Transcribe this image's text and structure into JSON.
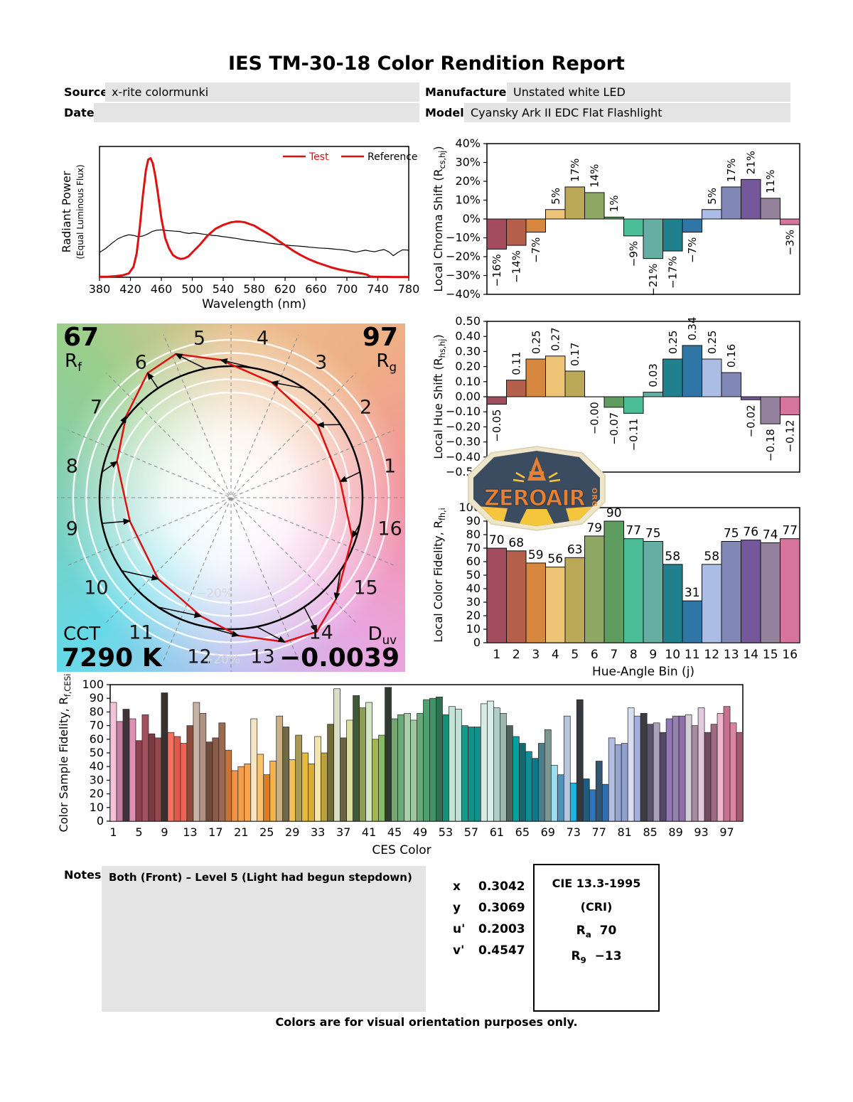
{
  "title": "IES TM-30-18 Color Rendition Report",
  "header": {
    "source_label": "Source:",
    "source_value": "x-rite colormunki",
    "date_label": "Date:",
    "date_value": "",
    "manufacturer_label": "Manufacturer:",
    "manufacturer_value": "Unstated white LED",
    "model_label": "Model:",
    "model_value": "Cyansky Ark II EDC Flat Flashlight"
  },
  "cvg": {
    "rf_value": "67",
    "rf_base": "R",
    "rf_sub": "f",
    "rg_value": "97",
    "rg_base": "R",
    "rg_sub": "g",
    "cct_label": "CCT",
    "cct_value": "7290 K",
    "duv_base": "D",
    "duv_sub": "uv",
    "duv_value": "−0.0039",
    "minus20": "−20%",
    "plus20": "+20%",
    "bin_labels": [
      "1",
      "2",
      "3",
      "4",
      "5",
      "6",
      "7",
      "8",
      "9",
      "10",
      "11",
      "12",
      "13",
      "14",
      "15",
      "16"
    ]
  },
  "logo": {
    "brand": "ZEROAIR",
    "org": "ORG"
  },
  "notes": {
    "label": "Notes:",
    "text": "Both (Front) – Level 5 (Light had begun stepdown)"
  },
  "chromaticity": {
    "rows": [
      {
        "label": "x",
        "value": "0.3042"
      },
      {
        "label": "y",
        "value": "0.3069"
      },
      {
        "label": "u'",
        "value": "0.2003"
      },
      {
        "label": "v'",
        "value": "0.4547"
      }
    ]
  },
  "cri_box": {
    "title": "CIE 13.3-1995",
    "subtitle": "(CRI)",
    "ra_base": "R",
    "ra_sub": "a",
    "ra_value": "70",
    "r9_base": "R",
    "r9_sub": "9",
    "r9_value": "−13"
  },
  "footer": "Colors are for visual orientation purposes only.",
  "bin_colors": [
    "#A24C5E",
    "#B4604A",
    "#D8883E",
    "#EDC475",
    "#BCA958",
    "#90A865",
    "#5F9C60",
    "#4CBE97",
    "#66AEA4",
    "#20808D",
    "#2F76A6",
    "#ABBCE5",
    "#8288B6",
    "#75579B",
    "#94819C",
    "#D5749C"
  ],
  "chart_data": [
    {
      "id": "spd",
      "type": "line",
      "xlabel": "Wavelength (nm)",
      "ylabel": "Radiant Power",
      "ylabel2": "(Equal Luminous Flux)",
      "xlim": [
        380,
        780
      ],
      "ylim": [
        0,
        1
      ],
      "x_ticks": [
        380,
        420,
        460,
        500,
        540,
        580,
        620,
        660,
        700,
        740,
        780
      ],
      "legend": [
        {
          "label": "Test",
          "color": "#dd1111"
        },
        {
          "label": "Reference",
          "color": "#000000"
        }
      ],
      "series": [
        {
          "name": "Reference",
          "color": "#000000",
          "width": 1.2,
          "x": [
            380,
            388,
            396,
            404,
            412,
            418,
            424,
            430,
            436,
            442,
            448,
            454,
            460,
            466,
            472,
            478,
            484,
            490,
            496,
            502,
            508,
            514,
            520,
            526,
            532,
            538,
            544,
            550,
            556,
            562,
            568,
            574,
            580,
            586,
            592,
            598,
            604,
            610,
            616,
            622,
            628,
            634,
            640,
            646,
            652,
            658,
            664,
            670,
            676,
            682,
            688,
            694,
            700,
            706,
            712,
            718,
            724,
            730,
            736,
            742,
            748,
            754,
            760,
            766,
            772,
            778,
            780
          ],
          "y": [
            0.19,
            0.22,
            0.26,
            0.295,
            0.315,
            0.325,
            0.32,
            0.31,
            0.315,
            0.33,
            0.35,
            0.36,
            0.362,
            0.358,
            0.355,
            0.352,
            0.35,
            0.34,
            0.335,
            0.34,
            0.335,
            0.33,
            0.325,
            0.32,
            0.318,
            0.312,
            0.308,
            0.302,
            0.298,
            0.292,
            0.285,
            0.28,
            0.277,
            0.272,
            0.268,
            0.262,
            0.258,
            0.253,
            0.25,
            0.246,
            0.242,
            0.24,
            0.237,
            0.234,
            0.23,
            0.227,
            0.224,
            0.222,
            0.22,
            0.217,
            0.213,
            0.21,
            0.206,
            0.198,
            0.192,
            0.2,
            0.207,
            0.2,
            0.195,
            0.205,
            0.212,
            0.195,
            0.165,
            0.19,
            0.21,
            0.208,
            0.205
          ]
        },
        {
          "name": "Test",
          "color": "#dd1111",
          "width": 3,
          "x": [
            380,
            390,
            400,
            410,
            418,
            424,
            428,
            432,
            436,
            440,
            443,
            446,
            449,
            452,
            456,
            460,
            465,
            470,
            475,
            480,
            485,
            490,
            495,
            500,
            510,
            520,
            530,
            540,
            550,
            556,
            562,
            568,
            575,
            580,
            590,
            600,
            610,
            620,
            630,
            640,
            650,
            660,
            670,
            680,
            690,
            700,
            710,
            720,
            726,
            730,
            735,
            740,
            750,
            760,
            770,
            780
          ],
          "y": [
            0.004,
            0.004,
            0.008,
            0.015,
            0.03,
            0.08,
            0.18,
            0.38,
            0.62,
            0.82,
            0.9,
            0.91,
            0.87,
            0.78,
            0.62,
            0.45,
            0.3,
            0.22,
            0.17,
            0.15,
            0.14,
            0.145,
            0.16,
            0.19,
            0.25,
            0.32,
            0.37,
            0.4,
            0.42,
            0.425,
            0.425,
            0.42,
            0.405,
            0.395,
            0.36,
            0.325,
            0.285,
            0.245,
            0.205,
            0.17,
            0.14,
            0.115,
            0.095,
            0.075,
            0.06,
            0.048,
            0.038,
            0.028,
            0.02,
            0.006,
            0.004,
            0.003,
            0.003,
            0.002,
            0.002,
            0.002
          ]
        }
      ]
    },
    {
      "id": "chroma",
      "type": "bar",
      "ylabel_parts": [
        [
          "Local Chroma Shift (R",
          0
        ],
        [
          "cs,hj",
          1
        ],
        [
          ")",
          0
        ]
      ],
      "ylim": [
        -40,
        40
      ],
      "ytick_step": 10,
      "ytick_suffix": "%",
      "categories": [
        1,
        2,
        3,
        4,
        5,
        6,
        7,
        8,
        9,
        10,
        11,
        12,
        13,
        14,
        15,
        16
      ],
      "values": [
        -16,
        -14,
        -7,
        5,
        17,
        14,
        1,
        -9,
        -21,
        -17,
        -7,
        5,
        17,
        21,
        11,
        -3
      ],
      "labels": [
        "−16%",
        "−14%",
        "−7%",
        "5%",
        "17%",
        "14%",
        "1%",
        "−9%",
        "−21%",
        "−17%",
        "−7%",
        "5%",
        "17%",
        "21%",
        "11%",
        "−3%"
      ]
    },
    {
      "id": "hue",
      "type": "bar",
      "ylabel_parts": [
        [
          "Local Hue Shift (R",
          0
        ],
        [
          "hs,hj",
          1
        ],
        [
          ")",
          0
        ]
      ],
      "ylim": [
        -0.5,
        0.5
      ],
      "ytick_step": 0.1,
      "categories": [
        1,
        2,
        3,
        4,
        5,
        6,
        7,
        8,
        9,
        10,
        11,
        12,
        13,
        14,
        15,
        16
      ],
      "values": [
        -0.05,
        0.11,
        0.25,
        0.27,
        0.17,
        -0.001,
        -0.07,
        -0.11,
        0.03,
        0.25,
        0.34,
        0.25,
        0.16,
        -0.02,
        -0.18,
        -0.12
      ],
      "labels": [
        "−0.05",
        "0.11",
        "0.25",
        "0.27",
        "0.17",
        "−0.00",
        "−0.07",
        "−0.11",
        "0.03",
        "0.25",
        "0.34",
        "0.25",
        "0.16",
        "−0.02",
        "−0.18",
        "−0.12"
      ]
    },
    {
      "id": "localrf",
      "type": "bar",
      "ylabel_parts": [
        [
          "Local Color Fidelity, R",
          0
        ],
        [
          "fh,i",
          1
        ]
      ],
      "xlabel": "Hue-Angle Bin (j)",
      "ylim": [
        0,
        100
      ],
      "ytick_step": 10,
      "categories": [
        "1",
        "2",
        "3",
        "4",
        "5",
        "6",
        "7",
        "8",
        "9",
        "10",
        "11",
        "12",
        "13",
        "14",
        "15",
        "16"
      ],
      "values": [
        70,
        68,
        59,
        56,
        63,
        79,
        90,
        77,
        75,
        58,
        31,
        58,
        75,
        76,
        74,
        77
      ]
    },
    {
      "id": "ces",
      "type": "bar",
      "ylabel_parts": [
        [
          "Color Sample Fidelity, R",
          0
        ],
        [
          "f,CESi",
          1
        ]
      ],
      "xlabel": "CES Color",
      "ylim": [
        0,
        100
      ],
      "ytick_step": 10,
      "xtick_every": 4,
      "values": [
        87,
        73,
        82,
        75,
        59,
        78,
        64,
        61,
        94,
        65,
        62,
        57,
        70,
        87,
        79,
        58,
        61,
        72,
        52,
        37,
        40,
        42,
        75,
        49,
        34,
        44,
        77,
        69,
        45,
        63,
        50,
        42,
        62,
        50,
        71,
        97,
        61,
        74,
        92,
        83,
        87,
        60,
        63,
        98,
        75,
        78,
        79,
        74,
        79,
        89,
        90,
        91,
        78,
        84,
        82,
        70,
        69,
        69,
        86,
        88,
        83,
        79,
        70,
        62,
        57,
        51,
        46,
        57,
        67,
        41,
        34,
        77,
        28,
        89,
        31,
        23,
        44,
        27,
        61,
        56,
        57,
        83,
        77,
        79,
        71,
        72,
        65,
        75,
        77,
        77,
        78,
        70,
        83,
        65,
        71,
        79,
        84,
        72,
        65
      ],
      "colors": [
        "#F4C3D7",
        "#C47F9F",
        "#403339",
        "#DE8FB4",
        "#8E3F4E",
        "#A4505F",
        "#7C3A42",
        "#95494A",
        "#373132",
        "#F4705F",
        "#DE5A4D",
        "#E96657",
        "#8E4A3D",
        "#C7B1A5",
        "#B09181",
        "#6E4A3B",
        "#8A5B46",
        "#9C6A4F",
        "#C97236",
        "#F29341",
        "#F69C4B",
        "#FAA54E",
        "#F6E5C5",
        "#FCC171",
        "#DA7F27",
        "#F4B24E",
        "#CBB089",
        "#6F6945",
        "#F2C150",
        "#AA9B54",
        "#E5B93D",
        "#D6B034",
        "#F2E7A9",
        "#BCA23F",
        "#716C37",
        "#DBDEC6",
        "#6B6243",
        "#DADE9F",
        "#405A38",
        "#8B9D57",
        "#D4E6C3",
        "#A3B64F",
        "#89BA67",
        "#303B30",
        "#75A571",
        "#6BAA79",
        "#AACEAA",
        "#9DCA9D",
        "#67AA79",
        "#4FA06F",
        "#3F9569",
        "#2E7051",
        "#179079",
        "#C4E4D6",
        "#C0E2D6",
        "#189A8A",
        "#119288",
        "#0F9088",
        "#D6ECE4",
        "#DAEEE8",
        "#B0CEC8",
        "#9CB6AE",
        "#4F615A",
        "#00A2A2",
        "#15686C",
        "#0F8E96",
        "#097A86",
        "#4B7E8A",
        "#7C9690",
        "#9CDEEE",
        "#5292BA",
        "#B6C6DE",
        "#19B6E6",
        "#35393D",
        "#215B7E",
        "#2F74B6",
        "#335570",
        "#2B6EB2",
        "#B2BEE2",
        "#96A4D0",
        "#909ED2",
        "#DADEF2",
        "#A4B0DE",
        "#3C3C42",
        "#58526C",
        "#AAA2BA",
        "#534769",
        "#9078B6",
        "#9682AA",
        "#9070AA",
        "#D4CED8",
        "#A68AA0",
        "#E2CADE",
        "#704C5E",
        "#A06A82",
        "#EEB6CA",
        "#CA708E",
        "#DA86A2",
        "#A6586E"
      ]
    },
    {
      "id": "cvg_metrics",
      "type": "vector-graphic",
      "rf": 67,
      "rg": 97,
      "cct_k": 7290,
      "duv": -0.0039,
      "chroma_shift_pct": [
        -16,
        -14,
        -7,
        5,
        17,
        14,
        1,
        -9,
        -21,
        -17,
        -7,
        5,
        17,
        21,
        11,
        -3
      ],
      "hue_shift": [
        -0.05,
        0.11,
        0.25,
        0.27,
        0.17,
        0.0,
        -0.07,
        -0.11,
        0.03,
        0.25,
        0.34,
        0.25,
        0.16,
        -0.02,
        -0.18,
        -0.12
      ]
    }
  ]
}
